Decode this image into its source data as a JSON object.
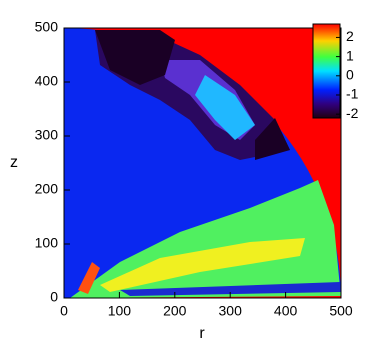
{
  "chart_data": {
    "type": "heatmap",
    "x_label": "r",
    "y_label": "z",
    "xlim": [
      0,
      500
    ],
    "xticks": [
      0,
      100,
      200,
      300,
      400,
      500
    ],
    "ylim": [
      0,
      500
    ],
    "yticks": [
      0,
      100,
      200,
      300,
      400,
      500
    ],
    "colorbar": {
      "lim": [
        -2.2,
        2.7
      ],
      "ticks": [
        2,
        1,
        0,
        -1,
        -2
      ]
    }
  }
}
